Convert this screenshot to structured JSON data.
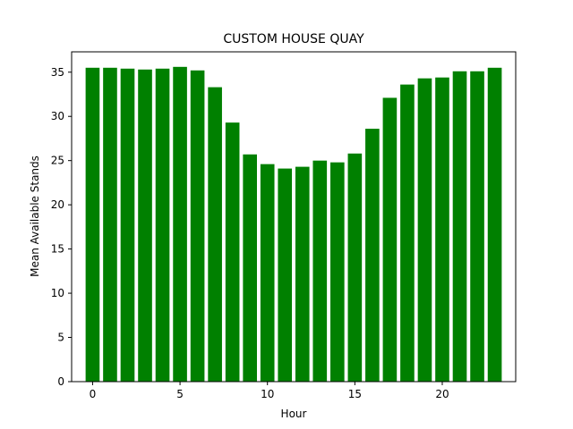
{
  "chart_data": {
    "type": "bar",
    "title": "CUSTOM HOUSE QUAY",
    "xlabel": "Hour",
    "ylabel": "Mean Available Stands",
    "x": [
      0,
      1,
      2,
      3,
      4,
      5,
      6,
      7,
      8,
      9,
      10,
      11,
      12,
      13,
      14,
      15,
      16,
      17,
      18,
      19,
      20,
      21,
      22,
      23
    ],
    "values": [
      35.5,
      35.5,
      35.4,
      35.3,
      35.4,
      35.6,
      35.2,
      33.3,
      29.3,
      25.7,
      24.6,
      24.1,
      24.3,
      25.0,
      24.8,
      25.8,
      28.6,
      32.1,
      33.6,
      34.3,
      34.4,
      35.1,
      35.1,
      35.5
    ],
    "xlim": [
      -1.2,
      24.2
    ],
    "ylim": [
      0,
      37.3
    ],
    "xticks": [
      "0",
      "5",
      "10",
      "15",
      "20"
    ],
    "yticks": [
      "0",
      "5",
      "10",
      "15",
      "20",
      "25",
      "30",
      "35"
    ],
    "bar_color": "#008000",
    "grid": false
  }
}
